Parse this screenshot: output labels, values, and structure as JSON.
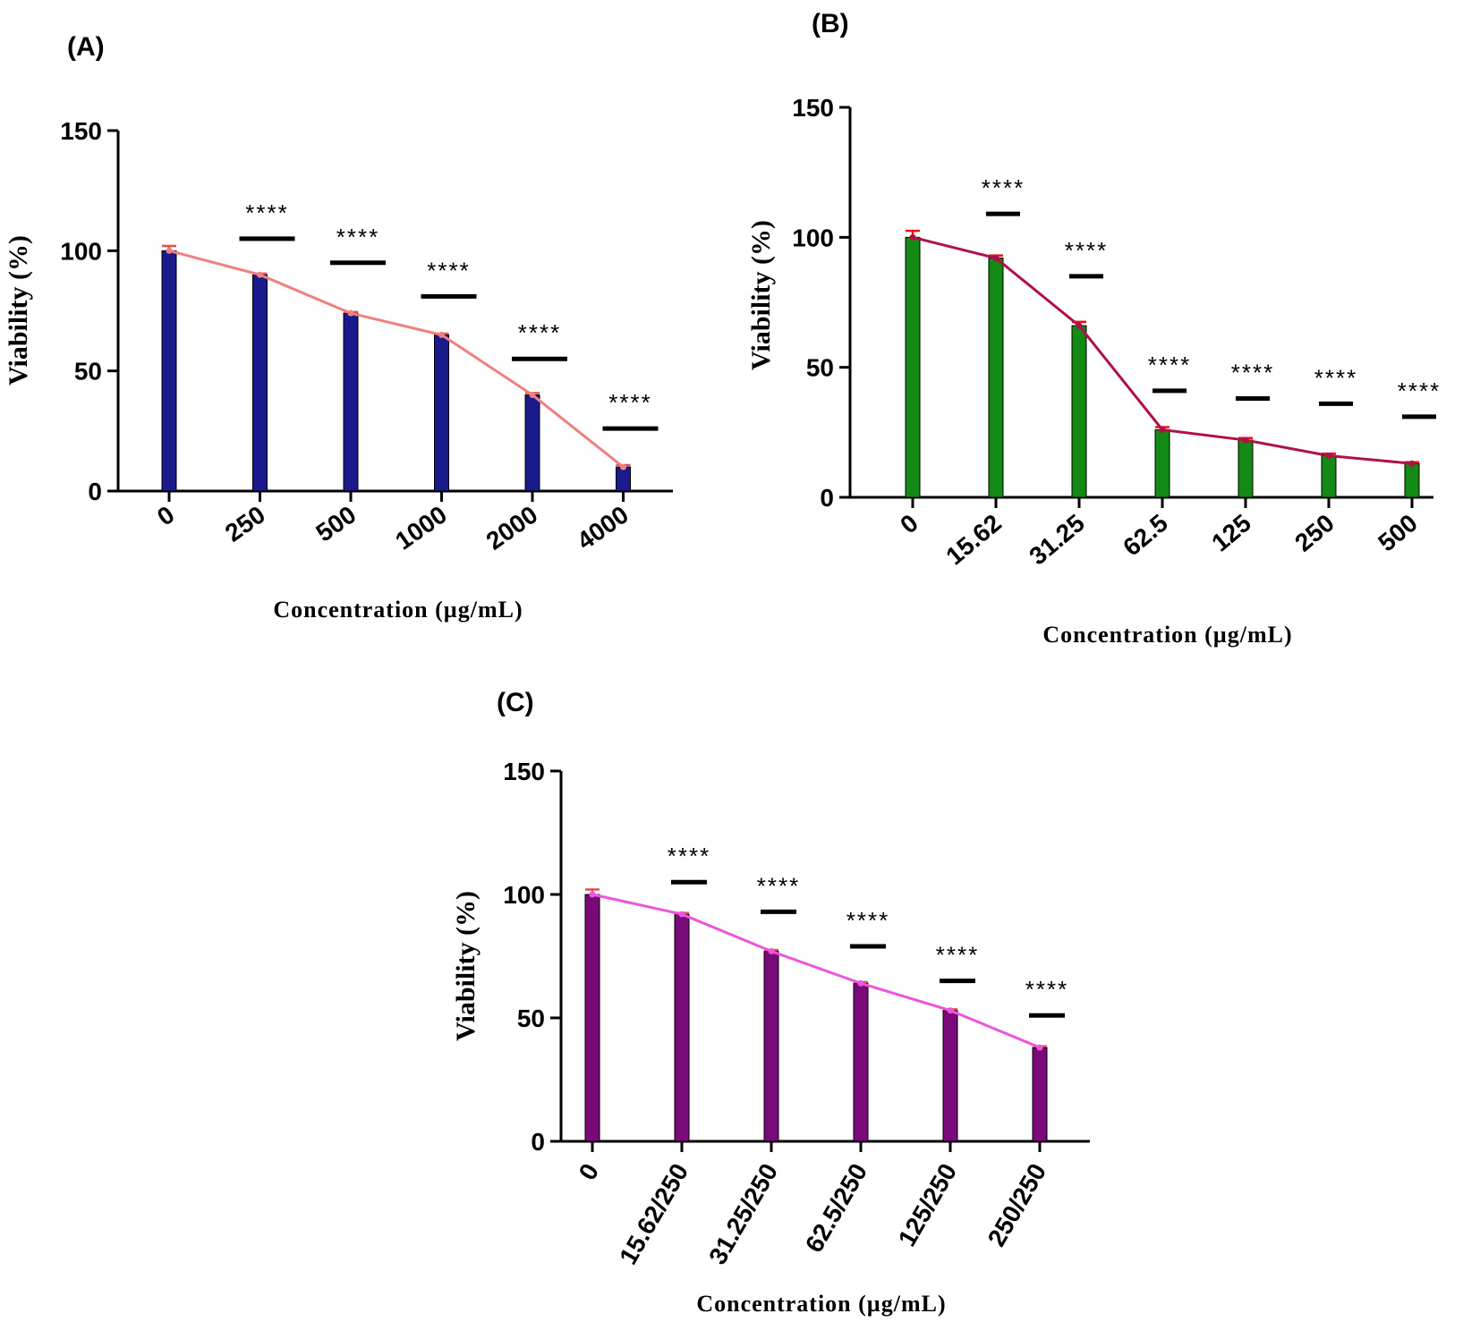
{
  "chart_data": [
    {
      "panel_label": "(A)",
      "type": "bar",
      "categories": [
        "0",
        "250",
        "500",
        "1000",
        "2000",
        "4000"
      ],
      "values": [
        100,
        90,
        74,
        65,
        40,
        10
      ],
      "errors": [
        2,
        0.5,
        0.5,
        0.5,
        0.8,
        0.8
      ],
      "line_overlay": true,
      "significance": [
        "",
        "****",
        "****",
        "****",
        "****",
        "****"
      ],
      "sig_levels": [
        null,
        105,
        95,
        81,
        55,
        26
      ],
      "xlabel": "Concentration (µg/mL)",
      "ylabel": "Viability (%)",
      "ylim": [
        0,
        150
      ],
      "yticks": [
        "0",
        "50",
        "100",
        "150"
      ],
      "bar_color": "#1a1a8c",
      "line_color": "#f08080",
      "error_color": "#e05050"
    },
    {
      "panel_label": "(B)",
      "type": "bar",
      "categories": [
        "0",
        "15.62",
        "31.25",
        "62.5",
        "125",
        "250",
        "500"
      ],
      "values": [
        100,
        92,
        66,
        26,
        22,
        16,
        13
      ],
      "errors": [
        2.5,
        1,
        1.5,
        1,
        0.8,
        0.8,
        0.5
      ],
      "line_overlay": true,
      "significance": [
        "",
        "****",
        "****",
        "****",
        "****",
        "****",
        "****"
      ],
      "sig_levels": [
        null,
        109,
        85,
        41,
        38,
        36,
        31
      ],
      "xlabel": "Concentration (µg/mL)",
      "ylabel": "Viability (%)",
      "ylim": [
        0,
        150
      ],
      "yticks": [
        "0",
        "50",
        "100",
        "150"
      ],
      "bar_color": "#138a13",
      "line_color": "#b0104a",
      "error_color": "#ee1111"
    },
    {
      "panel_label": "(C)",
      "type": "bar",
      "categories": [
        "0",
        "15.62/250",
        "31.25/250",
        "62.5/250",
        "125/250",
        "250/250"
      ],
      "values": [
        100,
        92,
        77,
        64,
        53,
        38
      ],
      "errors": [
        2,
        0.5,
        0.5,
        0.5,
        0.5,
        0.5
      ],
      "line_overlay": true,
      "significance": [
        "",
        "****",
        "****",
        "****",
        "****",
        "****"
      ],
      "sig_levels": [
        null,
        105,
        93,
        79,
        65,
        51
      ],
      "xlabel": "Concentration (µg/mL)",
      "ylabel": "Viability (%)",
      "ylim": [
        0,
        150
      ],
      "yticks": [
        "0",
        "50",
        "100",
        "150"
      ],
      "bar_color": "#7a0a7a",
      "line_color": "#ee55dd",
      "error_color": "#e05050"
    }
  ]
}
